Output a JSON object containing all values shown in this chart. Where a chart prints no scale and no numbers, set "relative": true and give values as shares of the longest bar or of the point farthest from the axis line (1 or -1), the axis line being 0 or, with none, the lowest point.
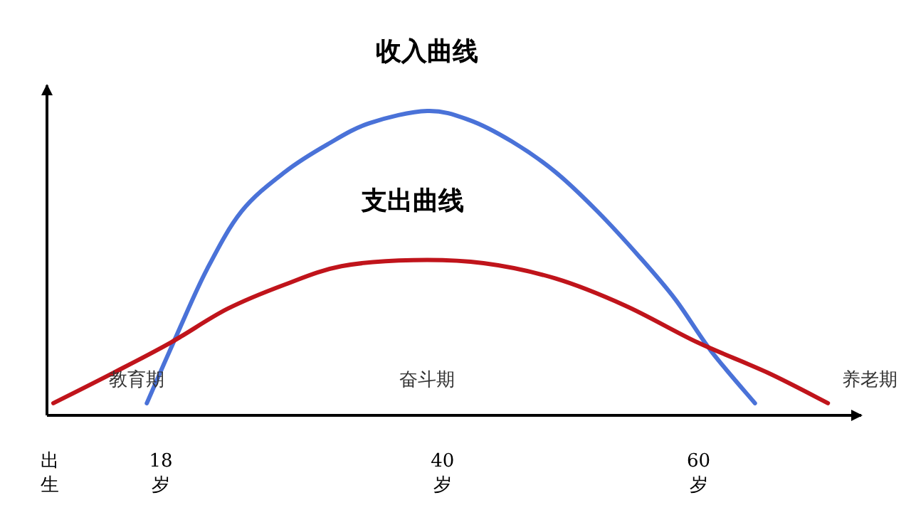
{
  "chart_data": {
    "type": "line",
    "relative": true,
    "xlim": [
      9.1,
      72.7
    ],
    "xticks": [
      {
        "value": 9.3,
        "label": "出生"
      },
      {
        "value": 18,
        "label": "18岁"
      },
      {
        "value": 40,
        "label": "40岁"
      },
      {
        "value": 60,
        "label": "60岁"
      }
    ],
    "series": [
      {
        "name": "收入曲线",
        "color": "#4a72d8",
        "x": [
          16.9,
          19.3,
          21.6,
          24.3,
          27.7,
          31,
          34.3,
          38.8,
          42.1,
          45.4,
          48.8,
          52.1,
          55.4,
          58.2,
          61,
          64.4
        ],
        "values": [
          0.04,
          0.27,
          0.48,
          0.67,
          0.8,
          0.89,
          0.96,
          1.0,
          0.97,
          0.9,
          0.8,
          0.67,
          0.52,
          0.38,
          0.21,
          0.04
        ]
      },
      {
        "name": "支出曲线",
        "color": "#c0141b",
        "x": [
          9.6,
          14.3,
          18.8,
          23.2,
          27.7,
          32.1,
          37.7,
          43.2,
          48.8,
          54.3,
          59.9,
          65.4,
          70.1
        ],
        "values": [
          0.04,
          0.14,
          0.24,
          0.35,
          0.43,
          0.49,
          0.51,
          0.5,
          0.45,
          0.36,
          0.24,
          0.14,
          0.04
        ]
      }
    ],
    "annotations": [
      "教育期",
      "奋斗期",
      "养老期"
    ],
    "grid": false,
    "marker": "none",
    "line_style": "solid"
  }
}
